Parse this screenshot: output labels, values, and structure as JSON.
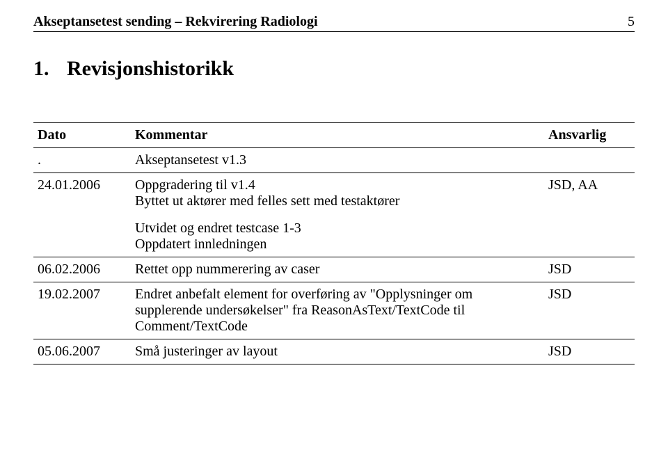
{
  "header": {
    "left": "Akseptansetest sending – Rekvirering Radiologi",
    "page_number": "5"
  },
  "section": {
    "number": "1.",
    "title": "Revisjonshistorikk"
  },
  "table": {
    "columns": [
      "Dato",
      "Kommentar",
      "Ansvarlig"
    ],
    "rows": [
      {
        "dato": ".",
        "kommentar_lines": [
          "Akseptansetest v1.3"
        ],
        "ansvarlig": ""
      },
      {
        "dato": "24.01.2006",
        "kommentar_lines": [
          "Oppgradering til v1.4\nByttet ut aktører med felles sett med testaktører",
          "Utvidet og endret testcase 1-3\nOppdatert innledningen"
        ],
        "ansvarlig": "JSD, AA"
      },
      {
        "dato": "06.02.2006",
        "kommentar_lines": [
          "Rettet opp nummerering av caser"
        ],
        "ansvarlig": "JSD"
      },
      {
        "dato": "19.02.2007",
        "kommentar_lines": [
          "Endret anbefalt element for overføring av \"Opplysninger om supplerende undersøkelser\" fra ReasonAsText/TextCode til Comment/TextCode"
        ],
        "ansvarlig": "JSD"
      },
      {
        "dato": "05.06.2007",
        "kommentar_lines": [
          "Små justeringer av layout"
        ],
        "ansvarlig": "JSD"
      }
    ]
  }
}
